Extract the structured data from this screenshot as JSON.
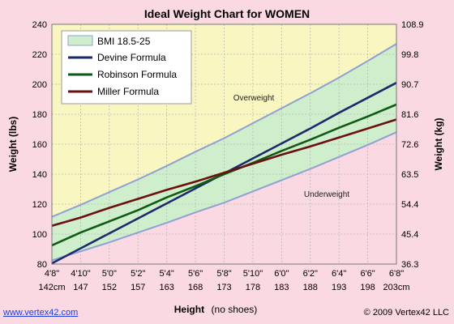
{
  "chart_data": {
    "type": "line",
    "title": "Ideal Weight Chart for WOMEN",
    "xlabel": "Height",
    "xlabel_note": "(no shoes)",
    "ylabel_left": "Weight (lbs)",
    "ylabel_right": "Weight (kg)",
    "x_inches": [
      56,
      58,
      60,
      62,
      64,
      66,
      68,
      70,
      72,
      74,
      76,
      78,
      80
    ],
    "x_ticks_ft": [
      "4'8\"",
      "4'10\"",
      "5'0\"",
      "5'2\"",
      "5'4\"",
      "5'6\"",
      "5'8\"",
      "5'10\"",
      "6'0\"",
      "6'2\"",
      "6'4\"",
      "6'6\"",
      "6'8\""
    ],
    "x_ticks_cm": [
      "142cm",
      "147",
      "152",
      "157",
      "163",
      "168",
      "173",
      "178",
      "183",
      "188",
      "193",
      "198",
      "203cm"
    ],
    "ylim_lbs": [
      80,
      240
    ],
    "y_ticks_lbs": [
      "80",
      "100",
      "120",
      "140",
      "160",
      "180",
      "200",
      "220",
      "240"
    ],
    "y_ticks_kg": [
      "36.3",
      "45.4",
      "54.4",
      "63.5",
      "72.6",
      "81.6",
      "90.7",
      "99.8",
      "108.9"
    ],
    "bmi_band": {
      "name": "BMI 18.5-25",
      "lower": [
        82.5,
        88.5,
        94.5,
        101.0,
        107.5,
        114.5,
        121.0,
        128.5,
        136.0,
        143.5,
        151.5,
        159.5,
        168.0
      ],
      "upper": [
        111.5,
        119.5,
        128.0,
        136.5,
        145.5,
        155.0,
        164.0,
        174.0,
        184.0,
        194.0,
        204.5,
        215.5,
        227.0
      ]
    },
    "series": [
      {
        "name": "Devine Formula",
        "values": [
          80.5,
          90.5,
          100.5,
          110.5,
          120.5,
          130.5,
          140.5,
          150.5,
          160.5,
          170.5,
          181.0,
          191.0,
          201.0
        ],
        "color": "#1a2a6c"
      },
      {
        "name": "Robinson Formula",
        "values": [
          92.5,
          101.0,
          108.5,
          116.0,
          124.5,
          132.0,
          140.0,
          147.5,
          155.5,
          163.0,
          171.0,
          178.5,
          186.5
        ],
        "color": "#0f5a14"
      },
      {
        "name": "Miller Formula",
        "values": [
          105.5,
          111.0,
          117.5,
          123.5,
          129.5,
          135.0,
          141.0,
          147.0,
          153.0,
          158.5,
          164.5,
          170.5,
          176.5
        ],
        "color": "#6b0f0f"
      }
    ],
    "annotations": {
      "overweight": "Overweight",
      "underweight": "Underweight"
    },
    "grid": true,
    "legend_position": "top-left"
  },
  "colors": {
    "page_bg": "#fbd9e3",
    "plot_bg": "#f9f6c2",
    "band_fill": "#cfeecb",
    "band_edge": "#8fa0d2",
    "grid": "#b9b9b9"
  },
  "footer": {
    "link": "www.vertex42.com",
    "copyright": "© 2009 Vertex42 LLC"
  }
}
